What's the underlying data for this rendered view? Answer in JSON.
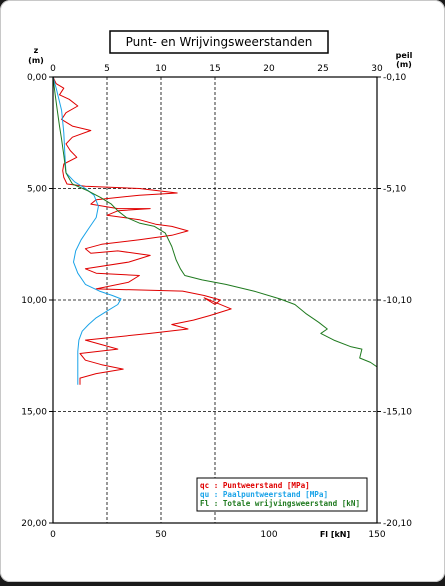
{
  "chart_data": {
    "type": "line",
    "title": "Punt- en Wrijvingsweerstanden",
    "left_axis": {
      "label": "z",
      "unit": "(m)",
      "range": [
        0,
        20
      ],
      "reversed": true,
      "ticks": [
        "0,00",
        "5,00",
        "10,00",
        "15,00",
        "20,00"
      ]
    },
    "right_axis": {
      "label": "peil",
      "unit": "(m)",
      "range": [
        -0.1,
        -20.1
      ],
      "ticks": [
        "-0,10",
        "-5,10",
        "-10,10",
        "-15,10",
        "-20,10"
      ]
    },
    "top_axis": {
      "range": [
        0,
        30
      ],
      "ticks": [
        "0",
        "5",
        "10",
        "15",
        "20",
        "25",
        "30"
      ]
    },
    "bottom_axis": {
      "label": "Fl [kN]",
      "range": [
        0,
        150
      ],
      "ticks": [
        "0",
        "50",
        "100",
        "150"
      ]
    },
    "grid": "dashed, x = 5, 10, 15 MPa; z = 5, 10, 15 m",
    "legend_placement": "bottom-right",
    "series": [
      {
        "key": "qc",
        "name": "Puntweerstand [MPa]",
        "legend": "qc : Puntweerstand [MPa]",
        "color": "#e00000",
        "axis": "top",
        "points": [
          [
            0.0,
            0.0
          ],
          [
            0.3,
            0.3
          ],
          [
            1.0,
            0.5
          ],
          [
            0.6,
            0.8
          ],
          [
            1.5,
            1.0
          ],
          [
            2.3,
            1.3
          ],
          [
            1.2,
            1.6
          ],
          [
            0.8,
            1.9
          ],
          [
            1.8,
            2.2
          ],
          [
            3.5,
            2.4
          ],
          [
            1.8,
            2.7
          ],
          [
            1.2,
            3.0
          ],
          [
            1.6,
            3.3
          ],
          [
            2.2,
            3.6
          ],
          [
            1.0,
            3.9
          ],
          [
            0.9,
            4.2
          ],
          [
            1.0,
            4.5
          ],
          [
            1.3,
            4.8
          ],
          [
            3.0,
            4.9
          ],
          [
            8.0,
            5.0
          ],
          [
            11.5,
            5.2
          ],
          [
            8.0,
            5.3
          ],
          [
            4.0,
            5.5
          ],
          [
            3.5,
            5.7
          ],
          [
            6.0,
            5.9
          ],
          [
            9.0,
            5.9
          ],
          [
            6.0,
            6.0
          ],
          [
            5.0,
            6.2
          ],
          [
            8.0,
            6.4
          ],
          [
            9.5,
            6.6
          ],
          [
            11.0,
            6.7
          ],
          [
            12.5,
            6.9
          ],
          [
            11.0,
            7.1
          ],
          [
            8.0,
            7.3
          ],
          [
            4.5,
            7.5
          ],
          [
            3.0,
            7.7
          ],
          [
            3.5,
            7.9
          ],
          [
            6.0,
            7.8
          ],
          [
            9.0,
            8.0
          ],
          [
            7.0,
            8.3
          ],
          [
            3.0,
            8.6
          ],
          [
            4.0,
            8.8
          ],
          [
            8.0,
            8.9
          ],
          [
            7.0,
            9.2
          ],
          [
            4.0,
            9.5
          ],
          [
            12.0,
            9.6
          ],
          [
            14.0,
            9.8
          ],
          [
            15.5,
            10.0
          ],
          [
            15.0,
            10.2
          ],
          [
            14.0,
            9.9
          ],
          [
            16.5,
            10.4
          ],
          [
            14.5,
            10.7
          ],
          [
            13.0,
            10.9
          ],
          [
            11.0,
            11.1
          ],
          [
            12.5,
            11.3
          ],
          [
            9.0,
            11.5
          ],
          [
            3.0,
            11.8
          ],
          [
            4.5,
            12.0
          ],
          [
            6.0,
            12.2
          ],
          [
            2.5,
            12.4
          ],
          [
            3.0,
            12.7
          ],
          [
            4.5,
            12.9
          ],
          [
            6.5,
            13.1
          ],
          [
            4.0,
            13.3
          ],
          [
            2.5,
            13.5
          ],
          [
            2.5,
            13.8
          ]
        ]
      },
      {
        "key": "qu",
        "name": "Paalpuntweerstand [MPa]",
        "legend": "qu : Paalpuntweerstand [MPa]",
        "color": "#1aa3e8",
        "axis": "top",
        "points": [
          [
            0.0,
            0.0
          ],
          [
            0.3,
            0.5
          ],
          [
            0.8,
            1.5
          ],
          [
            1.0,
            2.5
          ],
          [
            1.1,
            3.5
          ],
          [
            1.2,
            4.3
          ],
          [
            2.0,
            4.7
          ],
          [
            3.0,
            5.0
          ],
          [
            3.8,
            5.3
          ],
          [
            4.2,
            5.8
          ],
          [
            4.0,
            6.3
          ],
          [
            3.3,
            6.8
          ],
          [
            2.6,
            7.3
          ],
          [
            2.1,
            7.8
          ],
          [
            1.9,
            8.3
          ],
          [
            2.3,
            8.8
          ],
          [
            3.0,
            9.3
          ],
          [
            4.3,
            9.6
          ],
          [
            5.5,
            9.8
          ],
          [
            6.3,
            9.95
          ],
          [
            6.0,
            10.2
          ],
          [
            5.0,
            10.5
          ],
          [
            4.0,
            10.8
          ],
          [
            3.3,
            11.1
          ],
          [
            2.7,
            11.4
          ],
          [
            2.4,
            11.8
          ],
          [
            2.3,
            12.3
          ],
          [
            2.3,
            12.8
          ],
          [
            2.3,
            13.3
          ],
          [
            2.3,
            13.8
          ]
        ]
      },
      {
        "key": "Fl",
        "name": "Totale wrijvingsweerstand [kN]",
        "legend": "Fl : Totale wrijvingsweerstand [kN]",
        "color": "#1f7a1f",
        "axis": "bottom",
        "points": [
          [
            0.0,
            0.0
          ],
          [
            1.0,
            0.8
          ],
          [
            2.0,
            1.5
          ],
          [
            3.0,
            2.2
          ],
          [
            4.0,
            2.8
          ],
          [
            5.0,
            3.5
          ],
          [
            6.0,
            4.3
          ],
          [
            9.0,
            4.8
          ],
          [
            16.0,
            5.1
          ],
          [
            22.0,
            5.4
          ],
          [
            27.0,
            5.7
          ],
          [
            30.0,
            6.0
          ],
          [
            34.0,
            6.3
          ],
          [
            40.0,
            6.55
          ],
          [
            47.0,
            6.7
          ],
          [
            52.0,
            7.0
          ],
          [
            55.0,
            7.6
          ],
          [
            57.0,
            8.2
          ],
          [
            59.0,
            8.6
          ],
          [
            61.0,
            8.9
          ],
          [
            69.0,
            9.1
          ],
          [
            80.0,
            9.3
          ],
          [
            93.0,
            9.6
          ],
          [
            105.0,
            9.95
          ],
          [
            112.0,
            10.2
          ],
          [
            117.0,
            10.6
          ],
          [
            123.0,
            11.0
          ],
          [
            127.0,
            11.3
          ],
          [
            124.0,
            11.5
          ],
          [
            130.0,
            11.8
          ],
          [
            138.0,
            12.1
          ],
          [
            143.0,
            12.2
          ],
          [
            142.0,
            12.6
          ],
          [
            147.0,
            12.8
          ],
          [
            150.0,
            13.0
          ]
        ]
      }
    ]
  }
}
